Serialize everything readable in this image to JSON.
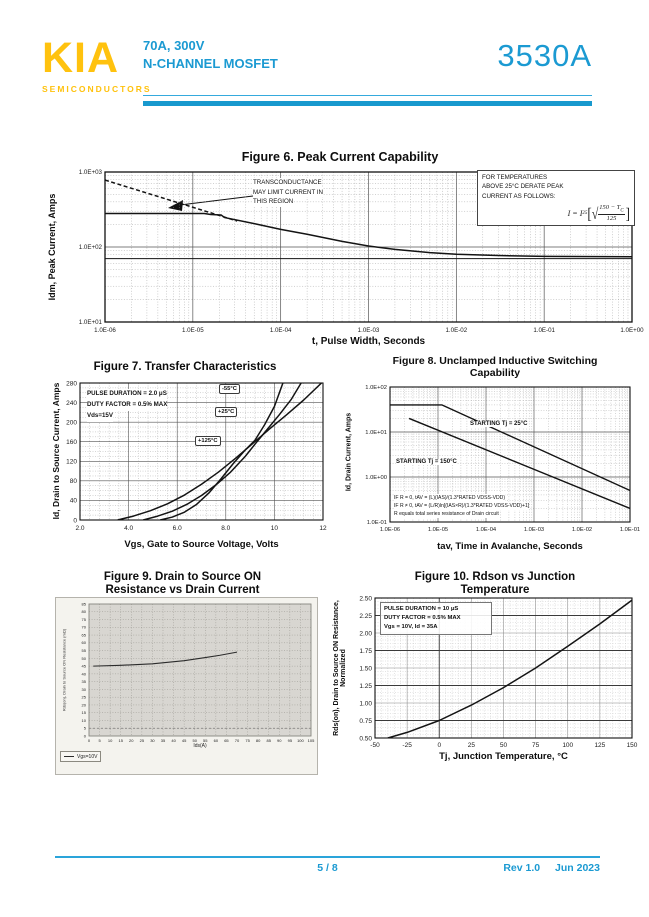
{
  "header": {
    "logo": "KIA",
    "logo_sub": "SEMICONDUCTORS",
    "rating": "70A, 300V",
    "device_type": "N-CHANNEL MOSFET",
    "part_number": "3530A",
    "accent_color": "#1B9AD2",
    "logo_color": "#FFC20E"
  },
  "footer": {
    "page": "5 / 8",
    "rev": "Rev 1.0",
    "date": "Jun 2023"
  },
  "chart_data": [
    {
      "id": "fig6",
      "type": "line",
      "title": "Figure 6. Peak Current Capability",
      "title_lines": [
        "Figure 6. Peak Current Capability"
      ],
      "xlabel": "t, Pulse Width, Seconds",
      "ylabel": "Idm, Peak Current, Amps",
      "xscale": "log",
      "yscale": "log",
      "xlim": [
        1e-06,
        1
      ],
      "ylim": [
        10,
        1000
      ],
      "xticks": [
        {
          "v": 1e-06,
          "label": "1.0E-06"
        },
        {
          "v": 1e-05,
          "label": "1.0E-05"
        },
        {
          "v": 0.0001,
          "label": "1.0E-04"
        },
        {
          "v": 0.001,
          "label": "1.0E-03"
        },
        {
          "v": 0.01,
          "label": "1.0E-02"
        },
        {
          "v": 0.1,
          "label": "1.0E-01"
        },
        {
          "v": 1,
          "label": "1.0E+00"
        }
      ],
      "yticks": [
        {
          "v": 1000,
          "label": "1.0E+03"
        },
        {
          "v": 100,
          "label": "1.0E+02"
        },
        {
          "v": 10,
          "label": "1.0E+01"
        }
      ],
      "series": [
        {
          "name": "transconductance-limit",
          "dash": "4,2.5",
          "width": 1.5,
          "points": [
            [
              1e-06,
              780
            ],
            [
              3.2e-05,
              222
            ]
          ]
        },
        {
          "name": "peak-current",
          "width": 1.5,
          "points": [
            [
              1e-06,
              280
            ],
            [
              1.35e-05,
              280
            ],
            [
              1.6e-05,
              271
            ],
            [
              2.1e-05,
              267
            ],
            [
              2.3e-05,
              247
            ],
            [
              5e-05,
              205
            ],
            [
              0.0001,
              172
            ],
            [
              0.0002,
              148
            ],
            [
              0.0005,
              119
            ],
            [
              0.001,
              103
            ],
            [
              0.002,
              93
            ],
            [
              0.005,
              84
            ],
            [
              0.01,
              80
            ],
            [
              0.03,
              77
            ],
            [
              0.1,
              75
            ],
            [
              1,
              74
            ]
          ]
        },
        {
          "name": "continuous-current-limit",
          "width": 1.1,
          "points": [
            [
              1e-06,
              70
            ],
            [
              1,
              70
            ]
          ]
        }
      ],
      "annotations": {
        "region_note": [
          "TRANSCONDUCTANCE",
          "MAY LIMIT CURRENT IN",
          "THIS REGION"
        ],
        "derate_note": [
          "FOR TEMPERATURES",
          "ABOVE 25°C DERATE PEAK",
          "CURRENT AS FOLLOWS:"
        ],
        "formula": {
          "prefix": "I = I",
          "prefix_sub": "25",
          "open": "[",
          "radical": "√",
          "numerator": "150 − T",
          "numerator_sub": "C",
          "denominator": "125",
          "close": "]"
        }
      }
    },
    {
      "id": "fig7",
      "type": "line",
      "title": "Figure 7. Transfer Characteristics",
      "title_lines": [
        "Figure 7. Transfer Characteristics"
      ],
      "xlabel": "Vgs, Gate to Source Voltage, Volts",
      "ylabel": "Id, Drain to Source Current, Amps",
      "xscale": "linear",
      "yscale": "linear",
      "xlim": [
        2,
        12
      ],
      "ylim": [
        0,
        280
      ],
      "xticks": [
        {
          "v": 2,
          "label": "2.0"
        },
        {
          "v": 4,
          "label": "4.0"
        },
        {
          "v": 6,
          "label": "6.0"
        },
        {
          "v": 8,
          "label": "8.0"
        },
        {
          "v": 10,
          "label": "10"
        },
        {
          "v": 12,
          "label": "12"
        }
      ],
      "yticks": [
        {
          "v": 0,
          "label": "0"
        },
        {
          "v": 40,
          "label": "40"
        },
        {
          "v": 80,
          "label": "80"
        },
        {
          "v": 120,
          "label": "120"
        },
        {
          "v": 160,
          "label": "160"
        },
        {
          "v": 200,
          "label": "200"
        },
        {
          "v": 240,
          "label": "240"
        },
        {
          "v": 280,
          "label": "280"
        }
      ],
      "conditions": [
        "PULSE DURATION = 2.0 μS",
        "DUTY FACTOR = 0.5% MAX",
        "Vds=15V"
      ],
      "series": [
        {
          "name": "-55°C",
          "width": 1.5,
          "points": [
            [
              5.3,
              0
            ],
            [
              5.8,
              6
            ],
            [
              6.3,
              16
            ],
            [
              6.8,
              32
            ],
            [
              7.3,
              55
            ],
            [
              7.8,
              84
            ],
            [
              8.3,
              115
            ],
            [
              8.8,
              143
            ],
            [
              9.2,
              163
            ],
            [
              9.6,
              195
            ],
            [
              10,
              232
            ],
            [
              10.35,
              280
            ]
          ]
        },
        {
          "name": "+25°C",
          "width": 1.5,
          "points": [
            [
              4.6,
              0
            ],
            [
              5.2,
              8
            ],
            [
              5.8,
              18
            ],
            [
              6.4,
              32
            ],
            [
              7,
              50
            ],
            [
              7.6,
              72
            ],
            [
              8.2,
              98
            ],
            [
              8.8,
              130
            ],
            [
              9.2,
              155
            ],
            [
              9.7,
              185
            ],
            [
              10.2,
              215
            ],
            [
              10.7,
              247
            ],
            [
              11.1,
              280
            ]
          ]
        },
        {
          "name": "+125°C",
          "width": 1.5,
          "points": [
            [
              3.55,
              0
            ],
            [
              4.2,
              8
            ],
            [
              4.9,
              19
            ],
            [
              5.6,
              33
            ],
            [
              6.3,
              51
            ],
            [
              7,
              73
            ],
            [
              7.7,
              98
            ],
            [
              8.4,
              126
            ],
            [
              9.1,
              156
            ],
            [
              9.8,
              186
            ],
            [
              10.5,
              215
            ],
            [
              11.2,
              245
            ],
            [
              12,
              283
            ]
          ]
        }
      ]
    },
    {
      "id": "fig8",
      "type": "line",
      "title": "Figure 8. Unclamped Inductive Switching Capability",
      "title_lines": [
        "Figure 8. Unclamped Inductive Switching",
        "Capability"
      ],
      "xlabel": "tav, Time in Avalanche, Seconds",
      "ylabel": "Id, Drain Current, Amps",
      "xscale": "log",
      "yscale": "log",
      "xlim": [
        1e-06,
        0.1
      ],
      "ylim": [
        0.1,
        100
      ],
      "xticks": [
        {
          "v": 1e-06,
          "label": "1.0E-06"
        },
        {
          "v": 1e-05,
          "label": "1.0E-05"
        },
        {
          "v": 0.0001,
          "label": "1.0E-04"
        },
        {
          "v": 0.001,
          "label": "1.0E-03"
        },
        {
          "v": 0.01,
          "label": "1.0E-02"
        },
        {
          "v": 0.1,
          "label": "1.0E-01"
        }
      ],
      "yticks": [
        {
          "v": 100,
          "label": "1.0E+02"
        },
        {
          "v": 10,
          "label": "1.0E+01"
        },
        {
          "v": 1,
          "label": "1.0E+00"
        },
        {
          "v": 0.1,
          "label": "1.0E-01"
        }
      ],
      "series": [
        {
          "name": "STARTING Tj = 25°C",
          "width": 1.4,
          "points": [
            [
              1e-06,
              40
            ],
            [
              1.2e-05,
              40
            ],
            [
              0.1,
              0.5
            ]
          ]
        },
        {
          "name": "STARTING Tj = 150°C",
          "width": 1.4,
          "points": [
            [
              2.5e-06,
              20
            ],
            [
              0.1,
              0.2
            ]
          ]
        }
      ],
      "notes": [
        "IF R = 0, tAV = (L)(IAS)/(1.3*RATED VDSS-VDD)",
        "IF R ≠ 0, tAV = (L/R)ln[(IAS×R)/(1.3*RATED VDSS-VDD)+1]",
        "R equals total series resistance of Drain circuit"
      ]
    },
    {
      "id": "fig9",
      "type": "line",
      "title": "Figure 9. Drain to Source ON Resistance vs Drain Current",
      "title_lines": [
        "Figure 9. Drain to Source ON",
        "Resistance vs Drain Current"
      ],
      "xlabel": "Ids(A)",
      "ylabel": "Rds(on), Drain to Source ON Resistance (mΩ)",
      "xscale": "linear",
      "yscale": "linear",
      "xlim": [
        0,
        105
      ],
      "ylim": [
        0,
        85
      ],
      "xticks": [
        {
          "v": 0,
          "label": "0"
        },
        {
          "v": 5,
          "label": "5"
        },
        {
          "v": 10,
          "label": "10"
        },
        {
          "v": 15,
          "label": "15"
        },
        {
          "v": 20,
          "label": "20"
        },
        {
          "v": 25,
          "label": "25"
        },
        {
          "v": 30,
          "label": "30"
        },
        {
          "v": 35,
          "label": "35"
        },
        {
          "v": 40,
          "label": "40"
        },
        {
          "v": 45,
          "label": "45"
        },
        {
          "v": 50,
          "label": "50"
        },
        {
          "v": 55,
          "label": "55"
        },
        {
          "v": 60,
          "label": "60"
        },
        {
          "v": 65,
          "label": "65"
        },
        {
          "v": 70,
          "label": "70"
        },
        {
          "v": 75,
          "label": "75"
        },
        {
          "v": 80,
          "label": "80"
        },
        {
          "v": 85,
          "label": "85"
        },
        {
          "v": 90,
          "label": "90"
        },
        {
          "v": 95,
          "label": "95"
        },
        {
          "v": 100,
          "label": "100"
        },
        {
          "v": 105,
          "label": "105"
        }
      ],
      "yticks": [
        {
          "v": 0,
          "label": "0"
        },
        {
          "v": 5,
          "label": "5"
        },
        {
          "v": 10,
          "label": "10"
        },
        {
          "v": 15,
          "label": "15"
        },
        {
          "v": 20,
          "label": "20"
        },
        {
          "v": 25,
          "label": "25"
        },
        {
          "v": 30,
          "label": "30"
        },
        {
          "v": 35,
          "label": "35"
        },
        {
          "v": 40,
          "label": "40"
        },
        {
          "v": 45,
          "label": "45"
        },
        {
          "v": 50,
          "label": "50"
        },
        {
          "v": 55,
          "label": "55"
        },
        {
          "v": 60,
          "label": "60"
        },
        {
          "v": 65,
          "label": "65"
        },
        {
          "v": 70,
          "label": "70"
        },
        {
          "v": 75,
          "label": "75"
        },
        {
          "v": 80,
          "label": "80"
        },
        {
          "v": 85,
          "label": "85"
        }
      ],
      "series": [
        {
          "name": "Vgs=10V",
          "width": 1.1,
          "color": "#2b2b2b",
          "points": [
            [
              2,
              45
            ],
            [
              15,
              45.5
            ],
            [
              30,
              46.5
            ],
            [
              45,
              48.5
            ],
            [
              55,
              50.5
            ],
            [
              62,
              52
            ],
            [
              70,
              54
            ]
          ]
        },
        {
          "name": "reference-line",
          "width": 0.7,
          "color": "#777777",
          "dash": "2,2",
          "points": [
            [
              0,
              5
            ],
            [
              105,
              5
            ]
          ]
        }
      ]
    },
    {
      "id": "fig10",
      "type": "line",
      "title": "Figure 10. Rdson vs Junction Temperature",
      "title_lines": [
        "Figure 10. Rdson vs Junction",
        "Temperature"
      ],
      "xlabel": "Tj, Junction Temperature, °C",
      "ylabel": "Rds(on), Drain to Source ON Resistance, Normalized",
      "ylabel_lines": [
        "Rds(on), Drain to Source ON Resistance,",
        "Normalized"
      ],
      "xscale": "linear",
      "yscale": "linear",
      "xlim": [
        -50,
        150
      ],
      "ylim": [
        0.5,
        2.5
      ],
      "xticks": [
        {
          "v": -50,
          "label": "-50"
        },
        {
          "v": -25,
          "label": "-25"
        },
        {
          "v": 0,
          "label": "0"
        },
        {
          "v": 25,
          "label": "25"
        },
        {
          "v": 50,
          "label": "50"
        },
        {
          "v": 75,
          "label": "75"
        },
        {
          "v": 100,
          "label": "100"
        },
        {
          "v": 125,
          "label": "125"
        },
        {
          "v": 150,
          "label": "150"
        }
      ],
      "yticks": [
        {
          "v": 0.5,
          "label": "0.50"
        },
        {
          "v": 0.75,
          "label": "0.75"
        },
        {
          "v": 1,
          "label": "1.00"
        },
        {
          "v": 1.25,
          "label": "1.25"
        },
        {
          "v": 1.5,
          "label": "1.50"
        },
        {
          "v": 1.75,
          "label": "1.75"
        },
        {
          "v": 2,
          "label": "2.00"
        },
        {
          "v": 2.25,
          "label": "2.25"
        },
        {
          "v": 2.5,
          "label": "2.50"
        }
      ],
      "conditions": [
        "PULSE DURATION = 10 μS",
        "DUTY FACTOR = 0.5% MAX",
        "Vgs = 10V, Id = 35A"
      ],
      "series": [
        {
          "name": "normalized-rdson",
          "width": 1.5,
          "points": [
            [
              -40,
              0.5
            ],
            [
              -25,
              0.58
            ],
            [
              0,
              0.75
            ],
            [
              25,
              0.97
            ],
            [
              50,
              1.22
            ],
            [
              75,
              1.5
            ],
            [
              100,
              1.81
            ],
            [
              125,
              2.13
            ],
            [
              150,
              2.47
            ]
          ]
        }
      ]
    }
  ]
}
